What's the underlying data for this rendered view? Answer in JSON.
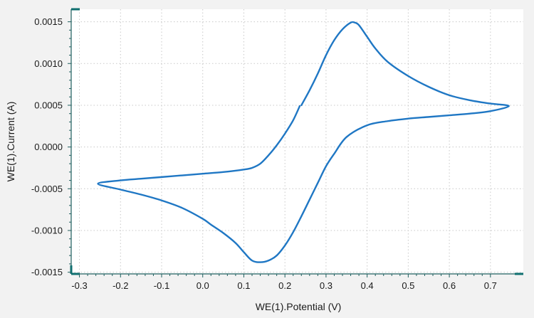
{
  "chart_data": {
    "type": "line",
    "title": "",
    "xlabel": "WE(1).Potential (V)",
    "ylabel": "WE(1).Current (A)",
    "xlim": [
      -0.32,
      0.78
    ],
    "ylim": [
      -0.00152,
      0.00165
    ],
    "x_ticks": [
      "-0.3",
      "-0.2",
      "-0.1",
      "0.0",
      "0.1",
      "0.2",
      "0.3",
      "0.4",
      "0.5",
      "0.6",
      "0.7"
    ],
    "x_tick_values": [
      -0.3,
      -0.2,
      -0.1,
      0.0,
      0.1,
      0.2,
      0.3,
      0.4,
      0.5,
      0.6,
      0.7
    ],
    "y_ticks": [
      "0.0015",
      "0.0010",
      "0.0005",
      "0.0000",
      "-0.0005",
      "-0.0010",
      "-0.0015"
    ],
    "y_tick_values": [
      0.0015,
      0.001,
      0.0005,
      0.0,
      -0.0005,
      -0.001,
      -0.0015
    ],
    "grid": true,
    "legend": "none",
    "line_color": "#1f77c4",
    "series": [
      {
        "values": [
          [
            0.24,
            0.0005
          ],
          [
            0.26,
            0.00068
          ],
          [
            0.28,
            0.00088
          ],
          [
            0.3,
            0.0011
          ],
          [
            0.32,
            0.00128
          ],
          [
            0.34,
            0.00141
          ],
          [
            0.36,
            0.00149
          ],
          [
            0.37,
            0.00149
          ],
          [
            0.38,
            0.00146
          ],
          [
            0.4,
            0.00132
          ],
          [
            0.42,
            0.00118
          ],
          [
            0.45,
            0.00102
          ],
          [
            0.5,
            0.00085
          ],
          [
            0.55,
            0.00072
          ],
          [
            0.6,
            0.00062
          ],
          [
            0.65,
            0.00056
          ],
          [
            0.7,
            0.00052
          ],
          [
            0.745,
            0.00049
          ],
          [
            0.7,
            0.00043
          ],
          [
            0.65,
            0.0004
          ],
          [
            0.6,
            0.00038
          ],
          [
            0.55,
            0.00036
          ],
          [
            0.5,
            0.00034
          ],
          [
            0.45,
            0.00031
          ],
          [
            0.4,
            0.00026
          ],
          [
            0.35,
            0.00012
          ],
          [
            0.32,
            -8e-05
          ],
          [
            0.3,
            -0.00023
          ],
          [
            0.28,
            -0.00043
          ],
          [
            0.26,
            -0.00063
          ],
          [
            0.24,
            -0.00083
          ],
          [
            0.22,
            -0.00102
          ],
          [
            0.2,
            -0.00118
          ],
          [
            0.18,
            -0.0013
          ],
          [
            0.16,
            -0.00136
          ],
          [
            0.14,
            -0.00138
          ],
          [
            0.12,
            -0.00136
          ],
          [
            0.1,
            -0.00126
          ],
          [
            0.08,
            -0.00115
          ],
          [
            0.05,
            -0.00103
          ],
          [
            0.02,
            -0.00093
          ],
          [
            0.0,
            -0.00086
          ],
          [
            -0.05,
            -0.00073
          ],
          [
            -0.1,
            -0.00064
          ],
          [
            -0.15,
            -0.00057
          ],
          [
            -0.2,
            -0.00051
          ],
          [
            -0.255,
            -0.00044
          ],
          [
            -0.2,
            -0.0004
          ],
          [
            -0.15,
            -0.00038
          ],
          [
            -0.1,
            -0.00036
          ],
          [
            -0.05,
            -0.00034
          ],
          [
            0.0,
            -0.00032
          ],
          [
            0.05,
            -0.0003
          ],
          [
            0.1,
            -0.00027
          ],
          [
            0.12,
            -0.00025
          ],
          [
            0.14,
            -0.0002
          ],
          [
            0.16,
            -0.0001
          ],
          [
            0.18,
            2e-05
          ],
          [
            0.2,
            0.00016
          ],
          [
            0.22,
            0.00032
          ],
          [
            0.236,
            0.00049
          ]
        ]
      }
    ]
  }
}
